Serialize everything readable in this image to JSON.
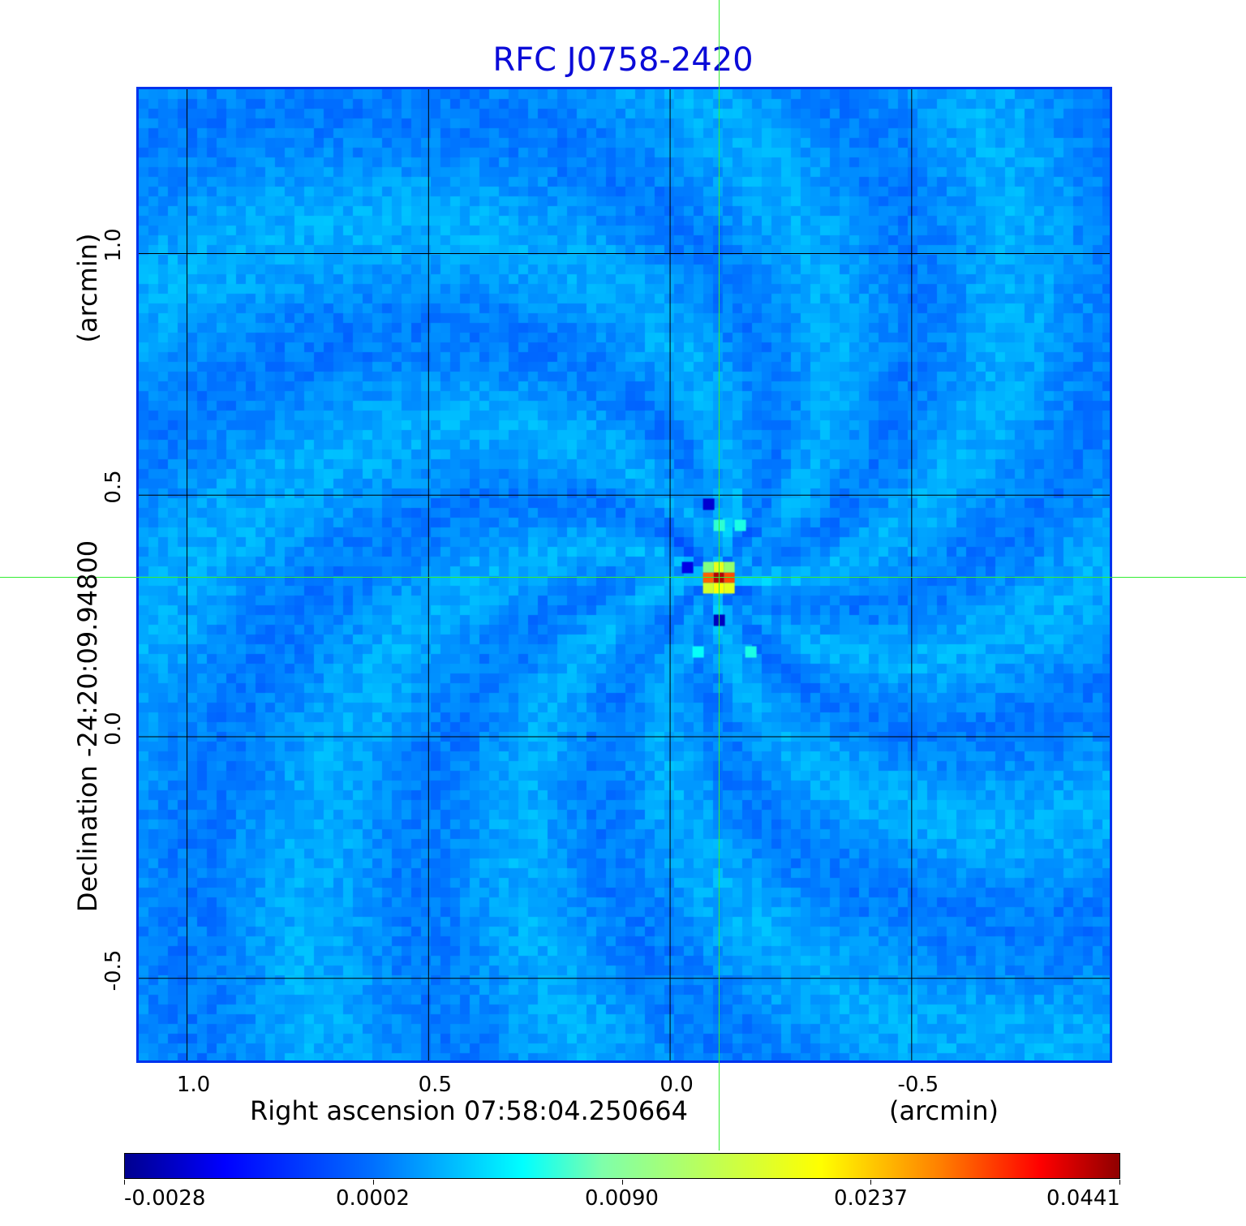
{
  "chart_data": {
    "type": "heatmap",
    "title": "RFC J0758-2420",
    "xlabel": "Right ascension  07:58:04.250664",
    "xunit": "(arcmin)",
    "ylabel": "Declination  -24:20:09.94800",
    "yunit": "(arcmin)",
    "x_ticks": [
      "1.0",
      "0.5",
      "0.0",
      "-0.5"
    ],
    "x_tick_values": [
      1.0,
      0.5,
      0.0,
      -0.5
    ],
    "y_ticks": [
      "1.0",
      "0.5",
      "0.0",
      "-0.5"
    ],
    "y_tick_values": [
      1.0,
      0.5,
      0.0,
      -0.5
    ],
    "xlim": [
      1.1,
      -0.91
    ],
    "ylim": [
      -0.67,
      1.34
    ],
    "grid": true,
    "crosshair": {
      "x": -0.1,
      "y": 0.33
    },
    "source_peak": {
      "x": -0.1,
      "y": 0.33,
      "value": 0.0441
    },
    "colormap": "jet",
    "colorbar_ticks": [
      "-0.0028",
      "0.0002",
      "0.0090",
      "0.0237",
      "0.0441"
    ],
    "colorbar_tick_values": [
      -0.0028,
      0.0002,
      0.009,
      0.0237,
      0.0441
    ],
    "colors": {
      "title": "#0b0bd8",
      "frame": "#0033ee",
      "crosshair": "#33ee33",
      "background": "#1a8cff"
    }
  }
}
